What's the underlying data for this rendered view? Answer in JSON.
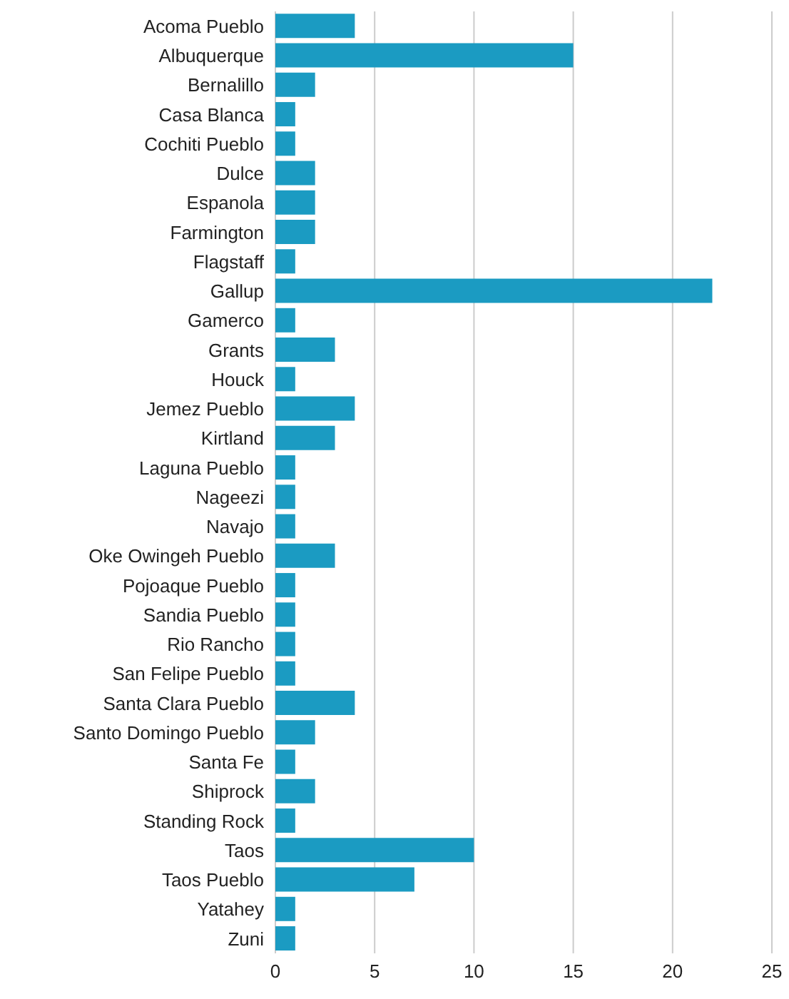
{
  "chart_data": {
    "type": "bar",
    "orientation": "horizontal",
    "categories": [
      "Acoma Pueblo",
      "Albuquerque",
      "Bernalillo",
      "Casa Blanca",
      "Cochiti Pueblo",
      "Dulce",
      "Espanola",
      "Farmington",
      "Flagstaff",
      "Gallup",
      "Gamerco",
      "Grants",
      "Houck",
      "Jemez Pueblo",
      "Kirtland",
      "Laguna Pueblo",
      "Nageezi",
      "Navajo",
      "Oke Owingeh Pueblo",
      "Pojoaque Pueblo",
      "Sandia Pueblo",
      "Rio Rancho",
      "San Felipe Pueblo",
      "Santa Clara Pueblo",
      "Santo Domingo Pueblo",
      "Santa Fe",
      "Shiprock",
      "Standing Rock",
      "Taos",
      "Taos Pueblo",
      "Yatahey",
      "Zuni"
    ],
    "values": [
      4,
      15,
      2,
      1,
      1,
      2,
      2,
      2,
      1,
      22,
      1,
      3,
      1,
      4,
      3,
      1,
      1,
      1,
      3,
      1,
      1,
      1,
      1,
      4,
      2,
      1,
      2,
      1,
      10,
      7,
      1,
      1
    ],
    "color": "#1b9bc2",
    "xlim": [
      0,
      25
    ],
    "xticks": [
      0,
      5,
      10,
      15,
      20,
      25
    ],
    "grid": "x"
  }
}
